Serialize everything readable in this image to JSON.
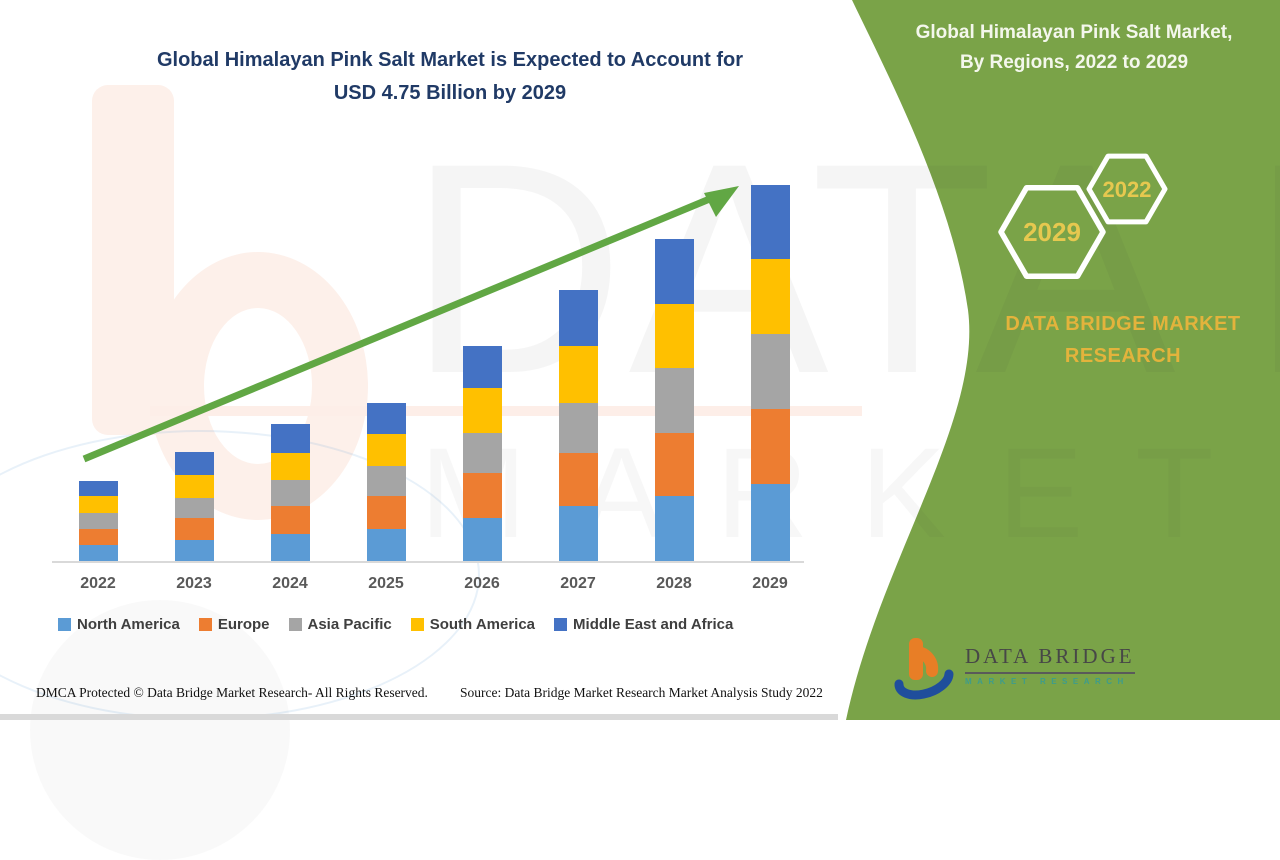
{
  "main_title": {
    "line1": "Global Himalayan Pink Salt Market is Expected to Account for",
    "line2": "USD 4.75 Billion by 2029"
  },
  "side_panel": {
    "title_line1": "Global Himalayan Pink Salt Market,",
    "title_line2": "By Regions, 2022 to 2029",
    "hexagon_front_year": "2029",
    "hexagon_back_year": "2022",
    "brand_text": "DATA BRIDGE MARKET RESEARCH",
    "panel_color": "#7AA348",
    "gold_color": "#E6C84F"
  },
  "logo": {
    "name": "DATA BRIDGE",
    "tagline": "MARKET RESEARCH"
  },
  "watermark": {
    "line1": "DATA BRIDGE",
    "line2": "MARKET RESEARCH"
  },
  "footer": {
    "left": "DMCA Protected © Data Bridge Market Research- All Rights Reserved.",
    "right": "Source: Data Bridge Market Research Market Analysis Study 2022"
  },
  "chart_data": {
    "type": "bar",
    "stacked": true,
    "title": "Global Himalayan Pink Salt Market is Expected to Account for USD 4.75 Billion by 2029",
    "unit": "USD Billion",
    "categories": [
      "2022",
      "2023",
      "2024",
      "2025",
      "2026",
      "2027",
      "2028",
      "2029"
    ],
    "series": [
      {
        "name": "North America",
        "color": "#5B9BD5",
        "values": [
          0.2,
          0.27,
          0.34,
          0.4,
          0.54,
          0.69,
          0.82,
          0.97
        ]
      },
      {
        "name": "Europe",
        "color": "#ED7D31",
        "values": [
          0.21,
          0.27,
          0.35,
          0.42,
          0.57,
          0.68,
          0.8,
          0.95
        ]
      },
      {
        "name": "Asia Pacific",
        "color": "#A5A5A5",
        "values": [
          0.2,
          0.25,
          0.34,
          0.38,
          0.51,
          0.63,
          0.82,
          0.95
        ]
      },
      {
        "name": "South America",
        "color": "#FFC000",
        "values": [
          0.21,
          0.3,
          0.33,
          0.4,
          0.56,
          0.71,
          0.81,
          0.95
        ]
      },
      {
        "name": "Middle East and Africa",
        "color": "#4472C4",
        "values": [
          0.19,
          0.28,
          0.37,
          0.4,
          0.54,
          0.71,
          0.81,
          0.93
        ]
      }
    ],
    "totals": [
      1.01,
      1.37,
      1.73,
      2.0,
      2.72,
      3.42,
      4.06,
      4.75
    ],
    "ylim": [
      0,
      5
    ],
    "grid": false,
    "legend_position": "bottom",
    "trend_arrow": "up-right"
  }
}
